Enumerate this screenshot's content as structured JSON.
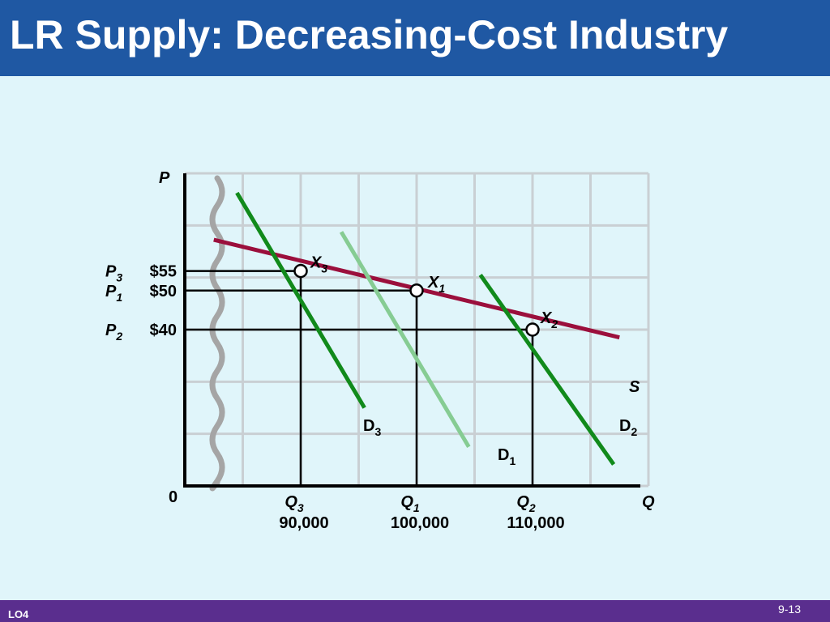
{
  "slide": {
    "title": "LR Supply:  Decreasing-Cost Industry",
    "footer_left": "LO4",
    "footer_right": "9-13"
  },
  "colors": {
    "title_bg": "#1f58a3",
    "footer_bg": "#5a2e8e",
    "background": "#e0f5fa",
    "supply": "#9b0f3c",
    "demand_dark": "#118a1b",
    "demand_light": "#86cc93",
    "grid": "#c9cfd3",
    "break_mark": "#a5a5a5"
  },
  "chart_data": {
    "type": "line",
    "title": "",
    "xlabel": "Q",
    "ylabel": "P",
    "origin_label": "0",
    "xlim": [
      80000,
      120000
    ],
    "ylim": [
      0,
      80
    ],
    "grid": true,
    "axis_break": true,
    "series": [
      {
        "name": "S",
        "color": "#9b0f3c",
        "x": [
          82500,
          117500
        ],
        "y": [
          63,
          38
        ]
      },
      {
        "name": "D3",
        "label_main": "D",
        "label_sub": "3",
        "color": "#118a1b",
        "x": [
          84500,
          95500
        ],
        "y": [
          75,
          20
        ]
      },
      {
        "name": "D1",
        "label_main": "D",
        "label_sub": "1",
        "color": "#86cc93",
        "x": [
          93500,
          104500
        ],
        "y": [
          65,
          10
        ]
      },
      {
        "name": "D2",
        "label_main": "D",
        "label_sub": "2",
        "color": "#118a1b",
        "x": [
          105500,
          117000
        ],
        "y": [
          54,
          5.5
        ]
      }
    ],
    "equilibria": [
      {
        "name": "X3",
        "label_main": "X",
        "label_sub": "3",
        "x": 90000,
        "y": 55
      },
      {
        "name": "X1",
        "label_main": "X",
        "label_sub": "1",
        "x": 100000,
        "y": 50
      },
      {
        "name": "X2",
        "label_main": "X",
        "label_sub": "2",
        "x": 110000,
        "y": 40
      }
    ],
    "price_labels": [
      {
        "main": "P",
        "sub": "3",
        "value": "$55",
        "y": 55
      },
      {
        "main": "P",
        "sub": "1",
        "value": "$50",
        "y": 50
      },
      {
        "main": "P",
        "sub": "2",
        "value": "$40",
        "y": 40
      }
    ],
    "quantity_labels": [
      {
        "main": "Q",
        "sub": "3",
        "value": "90,000",
        "x": 90000
      },
      {
        "main": "Q",
        "sub": "1",
        "value": "100,000",
        "x": 100000
      },
      {
        "main": "Q",
        "sub": "2",
        "value": "110,000",
        "x": 110000
      }
    ]
  }
}
